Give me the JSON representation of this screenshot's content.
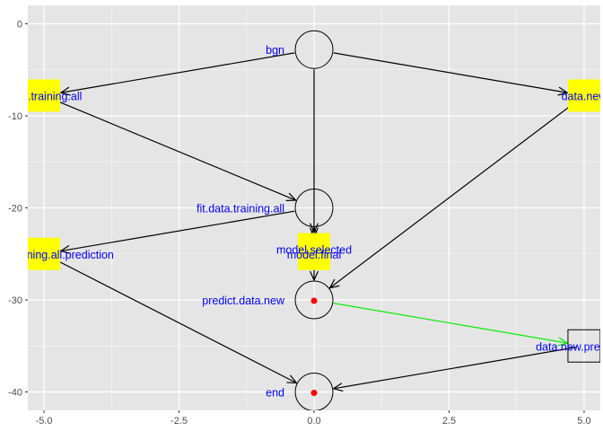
{
  "chart_data": {
    "type": "scatter",
    "title": "",
    "xlabel": "",
    "ylabel": "",
    "xlim": [
      -5.3,
      5.3
    ],
    "ylim": [
      -42,
      2
    ],
    "x_ticks": [
      -5.0,
      -2.5,
      0.0,
      2.5,
      5.0
    ],
    "x_tick_labels": [
      "-5.0",
      "-2.5",
      "0.0",
      "2.5",
      "5.0"
    ],
    "y_ticks": [
      0,
      -10,
      -20,
      -30,
      -40
    ],
    "y_tick_labels": [
      "0",
      "-10",
      "-20",
      "-30",
      "-40"
    ],
    "grid": true,
    "colors": {
      "panel": "#e5e5e5",
      "grid": "#ffffff",
      "node_label": "#0000ff",
      "data_box": "#ffff00",
      "edge": "#000000",
      "highlight_edge": "#00ee00",
      "dot": "#ff0000"
    },
    "nodes": [
      {
        "id": "bgn",
        "label": "bgn",
        "shape": "circle",
        "x": 0.0,
        "y": -2.8,
        "label_side": "left",
        "dot": false
      },
      {
        "id": "data.training.all",
        "label": "data.training.all",
        "shape": "box",
        "x": -5.0,
        "y": -7.8,
        "label_side": "center",
        "dot": false
      },
      {
        "id": "data.new",
        "label": "data.new",
        "shape": "box",
        "x": 5.0,
        "y": -7.8,
        "label_side": "center",
        "dot": false
      },
      {
        "id": "model.selected",
        "label": "model.selected",
        "shape": "box",
        "x": 0.0,
        "y": -24.5,
        "label_side": "center",
        "dot": false
      },
      {
        "id": "fit.data.training.all",
        "label": "fit.data.training.all",
        "shape": "circle",
        "x": 0.0,
        "y": -20.0,
        "label_side": "left",
        "dot": false
      },
      {
        "id": "fit.data.training.all.prediction",
        "label": "fit.data.training.all.prediction",
        "shape": "box",
        "x": -5.0,
        "y": -25.0,
        "label_side": "center",
        "dot": false
      },
      {
        "id": "model.final",
        "label": "model.final",
        "shape": "box",
        "x": 0.0,
        "y": -25.0,
        "label_side": "center",
        "dot": false
      },
      {
        "id": "predict.data.new",
        "label": "predict.data.new",
        "shape": "circle",
        "x": 0.0,
        "y": -30.0,
        "label_side": "left",
        "dot": true
      },
      {
        "id": "data.new.prediction",
        "label": "data.new.prediction",
        "shape": "square",
        "x": 5.0,
        "y": -35.0,
        "label_side": "center",
        "dot": false
      },
      {
        "id": "end",
        "label": "end",
        "shape": "circle",
        "x": 0.0,
        "y": -40.0,
        "label_side": "left",
        "dot": true
      }
    ],
    "edges": [
      {
        "from": "bgn",
        "to": "data.training.all",
        "color": "#000000"
      },
      {
        "from": "bgn",
        "to": "data.new",
        "color": "#000000"
      },
      {
        "from": "bgn",
        "to": "model.selected",
        "color": "#000000"
      },
      {
        "from": "data.training.all",
        "to": "fit.data.training.all",
        "color": "#000000"
      },
      {
        "from": "model.selected",
        "to": "fit.data.training.all",
        "color": "#000000"
      },
      {
        "from": "fit.data.training.all",
        "to": "fit.data.training.all.prediction",
        "color": "#000000"
      },
      {
        "from": "fit.data.training.all",
        "to": "model.final",
        "color": "#000000"
      },
      {
        "from": "model.final",
        "to": "predict.data.new",
        "color": "#000000"
      },
      {
        "from": "data.new",
        "to": "predict.data.new",
        "color": "#000000"
      },
      {
        "from": "fit.data.training.all.prediction",
        "to": "end",
        "color": "#000000"
      },
      {
        "from": "predict.data.new",
        "to": "data.new.prediction",
        "color": "#00ee00"
      },
      {
        "from": "data.new.prediction",
        "to": "end",
        "color": "#000000"
      }
    ]
  }
}
